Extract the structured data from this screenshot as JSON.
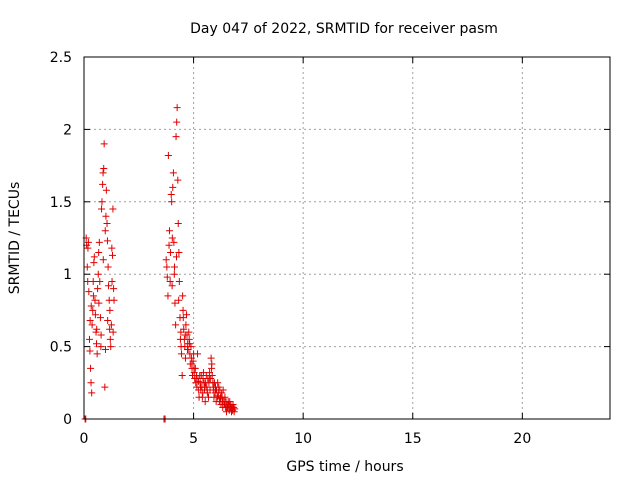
{
  "chart_data": {
    "type": "scatter",
    "title": "Day 047 of 2022, SRMTID for receiver pasm",
    "xlabel": "GPS time / hours",
    "ylabel": "SRMTID / TECUs",
    "xlim": [
      0,
      24
    ],
    "ylim": [
      0,
      2.5
    ],
    "xticks": [
      0,
      5,
      10,
      15,
      20
    ],
    "yticks": [
      0,
      0.5,
      1,
      1.5,
      2,
      2.5
    ],
    "xtick_labels": [
      "0",
      "5",
      "10",
      "15",
      "20"
    ],
    "ytick_labels": [
      "0",
      "0.5",
      "1",
      "1.5",
      "2",
      "2.5"
    ],
    "grid": true,
    "marker": "plus",
    "color": "#e00000",
    "series": [
      {
        "points": [
          [
            0.05,
            0.0
          ],
          [
            0.08,
            0.0
          ],
          [
            0.1,
            1.25
          ],
          [
            0.12,
            1.2
          ],
          [
            0.15,
            1.05
          ],
          [
            0.17,
            0.95
          ],
          [
            0.2,
            1.22
          ],
          [
            0.22,
            0.88
          ],
          [
            0.25,
            0.55
          ],
          [
            0.27,
            0.47
          ],
          [
            0.3,
            0.35
          ],
          [
            0.32,
            0.25
          ],
          [
            0.35,
            0.18
          ],
          [
            0.37,
            0.65
          ],
          [
            0.4,
            0.75
          ],
          [
            0.42,
            0.95
          ],
          [
            0.45,
            1.08
          ],
          [
            0.47,
            1.12
          ],
          [
            0.5,
            0.82
          ],
          [
            0.52,
            0.72
          ],
          [
            0.55,
            0.6
          ],
          [
            0.57,
            0.52
          ],
          [
            0.6,
            0.45
          ],
          [
            0.62,
            0.9
          ],
          [
            0.65,
            1.0
          ],
          [
            0.67,
            1.15
          ],
          [
            0.7,
            1.22
          ],
          [
            0.72,
            0.95
          ],
          [
            0.75,
            0.7
          ],
          [
            0.77,
            0.5
          ],
          [
            0.8,
            1.45
          ],
          [
            0.82,
            1.5
          ],
          [
            0.85,
            1.62
          ],
          [
            0.87,
            1.7
          ],
          [
            0.9,
            1.73
          ],
          [
            0.92,
            1.9
          ],
          [
            0.95,
            0.22
          ],
          [
            0.97,
            1.3
          ],
          [
            1.0,
            1.4
          ],
          [
            1.02,
            1.58
          ],
          [
            1.05,
            1.35
          ],
          [
            1.07,
            1.23
          ],
          [
            1.1,
            1.05
          ],
          [
            1.12,
            0.92
          ],
          [
            1.15,
            0.82
          ],
          [
            1.17,
            0.62
          ],
          [
            1.2,
            0.55
          ],
          [
            1.22,
            0.5
          ],
          [
            1.25,
            0.65
          ],
          [
            1.27,
            1.18
          ],
          [
            1.3,
            1.13
          ],
          [
            1.32,
            1.45
          ],
          [
            1.35,
            0.9
          ],
          [
            1.37,
            0.82
          ],
          [
            0.18,
            1.18
          ],
          [
            0.28,
            0.68
          ],
          [
            0.33,
            0.78
          ],
          [
            0.43,
            0.85
          ],
          [
            0.58,
            0.62
          ],
          [
            0.68,
            0.8
          ],
          [
            0.78,
            0.58
          ],
          [
            0.88,
            1.1
          ],
          [
            0.98,
            0.48
          ],
          [
            1.08,
            0.68
          ],
          [
            1.18,
            0.75
          ],
          [
            1.28,
            0.95
          ],
          [
            1.33,
            0.6
          ],
          [
            3.65,
            0.0
          ],
          [
            3.7,
            0.0
          ],
          [
            3.75,
            1.1
          ],
          [
            3.78,
            1.05
          ],
          [
            3.8,
            0.98
          ],
          [
            3.83,
            0.85
          ],
          [
            3.85,
            1.82
          ],
          [
            3.88,
            1.2
          ],
          [
            3.9,
            1.3
          ],
          [
            3.93,
            0.95
          ],
          [
            3.95,
            1.15
          ],
          [
            3.98,
            1.55
          ],
          [
            4.0,
            1.5
          ],
          [
            4.03,
            1.25
          ],
          [
            4.05,
            1.6
          ],
          [
            4.08,
            1.7
          ],
          [
            4.1,
            1.22
          ],
          [
            4.13,
            1.05
          ],
          [
            4.15,
            0.8
          ],
          [
            4.18,
            0.65
          ],
          [
            4.2,
            1.95
          ],
          [
            4.23,
            2.05
          ],
          [
            4.25,
            2.15
          ],
          [
            4.28,
            1.65
          ],
          [
            4.3,
            1.35
          ],
          [
            4.33,
            1.15
          ],
          [
            4.35,
            0.95
          ],
          [
            4.38,
            0.7
          ],
          [
            4.4,
            0.55
          ],
          [
            4.43,
            0.5
          ],
          [
            4.45,
            0.45
          ],
          [
            4.48,
            0.3
          ],
          [
            4.5,
            0.85
          ],
          [
            4.53,
            0.7
          ],
          [
            4.55,
            0.62
          ],
          [
            4.58,
            0.55
          ],
          [
            4.6,
            0.5
          ],
          [
            4.63,
            0.42
          ],
          [
            4.65,
            0.65
          ],
          [
            4.68,
            0.72
          ],
          [
            4.7,
            0.58
          ],
          [
            4.73,
            0.52
          ],
          [
            4.75,
            0.48
          ],
          [
            4.78,
            0.6
          ],
          [
            4.8,
            0.55
          ],
          [
            4.83,
            0.45
          ],
          [
            4.85,
            0.38
          ],
          [
            4.88,
            0.5
          ],
          [
            4.9,
            0.42
          ],
          [
            4.93,
            0.35
          ],
          [
            4.95,
            0.3
          ],
          [
            4.98,
            0.4
          ],
          [
            5.0,
            0.45
          ],
          [
            5.03,
            0.32
          ],
          [
            5.05,
            0.28
          ],
          [
            5.08,
            0.35
          ],
          [
            5.1,
            0.25
          ],
          [
            5.13,
            0.3
          ],
          [
            5.15,
            0.22
          ],
          [
            5.18,
            0.45
          ],
          [
            5.2,
            0.28
          ],
          [
            5.23,
            0.2
          ],
          [
            5.25,
            0.15
          ],
          [
            5.28,
            0.3
          ],
          [
            5.3,
            0.25
          ],
          [
            5.33,
            0.2
          ],
          [
            5.35,
            0.3
          ],
          [
            5.38,
            0.22
          ],
          [
            5.4,
            0.15
          ],
          [
            5.43,
            0.28
          ],
          [
            5.45,
            0.32
          ],
          [
            5.48,
            0.25
          ],
          [
            5.5,
            0.2
          ],
          [
            5.53,
            0.12
          ],
          [
            5.55,
            0.25
          ],
          [
            5.58,
            0.3
          ],
          [
            5.6,
            0.22
          ],
          [
            5.63,
            0.18
          ],
          [
            5.65,
            0.28
          ],
          [
            5.68,
            0.15
          ],
          [
            5.7,
            0.25
          ],
          [
            5.73,
            0.32
          ],
          [
            5.75,
            0.2
          ],
          [
            5.78,
            0.28
          ],
          [
            5.8,
            0.42
          ],
          [
            5.83,
            0.38
          ],
          [
            5.85,
            0.3
          ],
          [
            5.88,
            0.25
          ],
          [
            5.9,
            0.2
          ],
          [
            5.93,
            0.15
          ],
          [
            5.95,
            0.25
          ],
          [
            5.98,
            0.18
          ],
          [
            6.0,
            0.22
          ],
          [
            6.03,
            0.12
          ],
          [
            6.05,
            0.2
          ],
          [
            6.08,
            0.15
          ],
          [
            6.1,
            0.25
          ],
          [
            6.13,
            0.18
          ],
          [
            6.15,
            0.22
          ],
          [
            6.18,
            0.12
          ],
          [
            6.2,
            0.2
          ],
          [
            6.23,
            0.15
          ],
          [
            6.25,
            0.1
          ],
          [
            6.28,
            0.18
          ],
          [
            6.3,
            0.15
          ],
          [
            6.33,
            0.08
          ],
          [
            6.35,
            0.2
          ],
          [
            6.38,
            0.12
          ],
          [
            6.4,
            0.1
          ],
          [
            6.43,
            0.15
          ],
          [
            6.45,
            0.08
          ],
          [
            6.48,
            0.12
          ],
          [
            6.5,
            0.05
          ],
          [
            6.53,
            0.1
          ],
          [
            6.55,
            0.08
          ],
          [
            6.58,
            0.12
          ],
          [
            6.6,
            0.1
          ],
          [
            6.63,
            0.06
          ],
          [
            6.65,
            0.12
          ],
          [
            6.68,
            0.08
          ],
          [
            6.7,
            0.1
          ],
          [
            6.73,
            0.05
          ],
          [
            6.75,
            0.08
          ],
          [
            6.78,
            0.06
          ],
          [
            6.8,
            0.1
          ],
          [
            6.83,
            0.08
          ],
          [
            6.85,
            0.05
          ],
          [
            6.88,
            0.07
          ],
          [
            4.02,
            0.92
          ],
          [
            4.12,
            1.0
          ],
          [
            4.22,
            1.12
          ],
          [
            4.32,
            0.82
          ],
          [
            4.42,
            0.6
          ],
          [
            4.52,
            0.75
          ],
          [
            4.62,
            0.58
          ],
          [
            4.72,
            0.48
          ],
          [
            4.82,
            0.52
          ],
          [
            4.92,
            0.38
          ],
          [
            5.02,
            0.35
          ],
          [
            5.12,
            0.28
          ],
          [
            5.22,
            0.26
          ],
          [
            5.32,
            0.22
          ],
          [
            5.42,
            0.18
          ],
          [
            5.52,
            0.22
          ],
          [
            5.62,
            0.2
          ],
          [
            5.72,
            0.28
          ],
          [
            5.82,
            0.35
          ],
          [
            5.92,
            0.22
          ],
          [
            6.02,
            0.2
          ],
          [
            6.12,
            0.16
          ],
          [
            6.22,
            0.14
          ],
          [
            6.32,
            0.12
          ],
          [
            6.42,
            0.1
          ],
          [
            6.52,
            0.08
          ],
          [
            6.62,
            0.09
          ],
          [
            6.72,
            0.07
          ]
        ]
      }
    ]
  }
}
